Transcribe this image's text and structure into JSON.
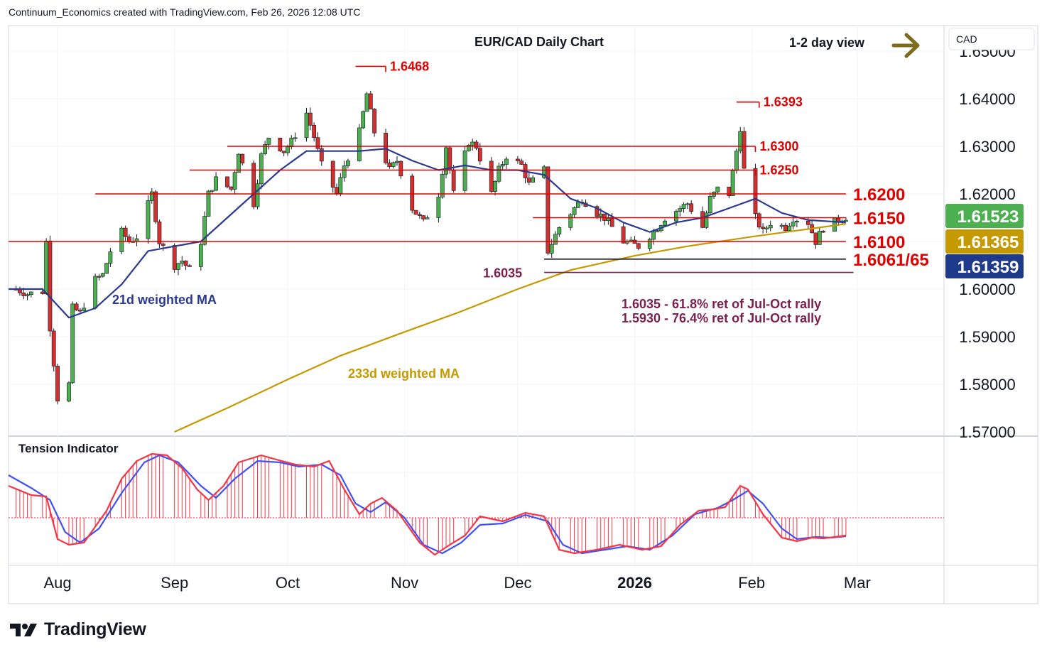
{
  "header": {
    "credit": "Continuum_Economics created with TradingView.com, Feb 26, 2026 12:08 UTC"
  },
  "main_pane": {
    "title": "EUR/CAD Daily Chart",
    "view_label": "1-2 day view",
    "currency_label": "CAD"
  },
  "colors": {
    "up": "#4caf50",
    "down": "#d32f2f",
    "level": "#e00000",
    "ma21": "#2b3a8f",
    "ma233": "#c49a00",
    "retrace": "#7b1f4f",
    "arrow": "#7f6b1e",
    "osc_red": "#f23645",
    "osc_blue": "#3f51f5"
  },
  "chart_data": {
    "type": "candlestick",
    "title": "EUR/CAD Daily Chart",
    "ylim": [
      1.57,
      1.65
    ],
    "y_ticks": [
      {
        "value": 1.57,
        "label": "1.57000"
      },
      {
        "value": 1.58,
        "label": "1.58000"
      },
      {
        "value": 1.59,
        "label": "1.59000"
      },
      {
        "value": 1.6,
        "label": "1.60000"
      },
      {
        "value": 1.61,
        "label": "1.61000"
      },
      {
        "value": 1.62,
        "label": "1.62000"
      },
      {
        "value": 1.63,
        "label": "1.63000"
      },
      {
        "value": 1.64,
        "label": "1.64000"
      },
      {
        "value": 1.65,
        "label": "1.65000"
      }
    ],
    "x_range": [
      "2025-07-19",
      "2026-03-24"
    ],
    "x_ticks": [
      {
        "date": "2025-08-01",
        "label": "Aug",
        "bold": false
      },
      {
        "date": "2025-09-01",
        "label": "Sep",
        "bold": false
      },
      {
        "date": "2025-10-01",
        "label": "Oct",
        "bold": false
      },
      {
        "date": "2025-11-01",
        "label": "Nov",
        "bold": false
      },
      {
        "date": "2025-12-01",
        "label": "Dec",
        "bold": false
      },
      {
        "date": "2026-01-01",
        "label": "2026",
        "bold": true
      },
      {
        "date": "2026-02-01",
        "label": "Feb",
        "bold": false
      },
      {
        "date": "2026-03-01",
        "label": "Mar",
        "bold": false
      }
    ],
    "close_path": [
      [
        "2025-07-21",
        1.6
      ],
      [
        "2025-07-24",
        1.599
      ],
      [
        "2025-07-28",
        1.5995
      ],
      [
        "2025-07-29",
        1.61
      ],
      [
        "2025-07-30",
        1.592
      ],
      [
        "2025-08-01",
        1.577
      ],
      [
        "2025-08-04",
        1.58
      ],
      [
        "2025-08-05",
        1.596
      ],
      [
        "2025-08-07",
        1.595
      ],
      [
        "2025-08-11",
        1.602
      ],
      [
        "2025-08-13",
        1.603
      ],
      [
        "2025-08-15",
        1.608
      ],
      [
        "2025-08-18",
        1.612
      ],
      [
        "2025-08-20",
        1.61
      ],
      [
        "2025-08-22",
        1.611
      ],
      [
        "2025-08-26",
        1.62
      ],
      [
        "2025-08-28",
        1.61
      ],
      [
        "2025-09-01",
        1.605
      ],
      [
        "2025-09-03",
        1.606
      ],
      [
        "2025-09-05",
        1.604
      ],
      [
        "2025-09-08",
        1.61
      ],
      [
        "2025-09-10",
        1.62
      ],
      [
        "2025-09-12",
        1.623
      ],
      [
        "2025-09-16",
        1.621
      ],
      [
        "2025-09-18",
        1.629
      ],
      [
        "2025-09-22",
        1.618
      ],
      [
        "2025-09-24",
        1.628
      ],
      [
        "2025-09-26",
        1.632
      ],
      [
        "2025-09-30",
        1.629
      ],
      [
        "2025-10-02",
        1.631
      ],
      [
        "2025-10-06",
        1.637
      ],
      [
        "2025-10-08",
        1.632
      ],
      [
        "2025-10-10",
        1.626
      ],
      [
        "2025-10-14",
        1.62
      ],
      [
        "2025-10-16",
        1.626
      ],
      [
        "2025-10-20",
        1.633
      ],
      [
        "2025-10-22",
        1.641
      ],
      [
        "2025-10-24",
        1.633
      ],
      [
        "2025-10-28",
        1.625
      ],
      [
        "2025-10-30",
        1.627
      ],
      [
        "2025-11-03",
        1.617
      ],
      [
        "2025-11-06",
        1.614
      ],
      [
        "2025-11-10",
        1.62
      ],
      [
        "2025-11-12",
        1.63
      ],
      [
        "2025-11-14",
        1.62
      ],
      [
        "2025-11-18",
        1.631
      ],
      [
        "2025-11-20",
        1.63
      ],
      [
        "2025-11-24",
        1.62
      ],
      [
        "2025-11-26",
        1.625
      ],
      [
        "2025-11-28",
        1.628
      ],
      [
        "2025-12-02",
        1.626
      ],
      [
        "2025-12-04",
        1.622
      ],
      [
        "2025-12-08",
        1.625
      ],
      [
        "2025-12-09",
        1.608
      ],
      [
        "2025-12-12",
        1.613
      ],
      [
        "2025-12-16",
        1.617
      ],
      [
        "2025-12-18",
        1.619
      ],
      [
        "2025-12-22",
        1.616
      ],
      [
        "2025-12-24",
        1.615
      ],
      [
        "2025-12-29",
        1.61
      ],
      [
        "2026-01-02",
        1.609
      ],
      [
        "2026-01-06",
        1.612
      ],
      [
        "2026-01-09",
        1.615
      ],
      [
        "2026-01-13",
        1.617
      ],
      [
        "2026-01-15",
        1.618
      ],
      [
        "2026-01-19",
        1.613
      ],
      [
        "2026-01-21",
        1.619
      ],
      [
        "2026-01-23",
        1.621
      ],
      [
        "2026-01-26",
        1.62
      ],
      [
        "2026-01-28",
        1.629
      ],
      [
        "2026-01-29",
        1.634
      ],
      [
        "2026-01-30",
        1.625
      ],
      [
        "2026-02-02",
        1.615
      ],
      [
        "2026-02-04",
        1.612
      ],
      [
        "2026-02-06",
        1.614
      ],
      [
        "2026-02-10",
        1.613
      ],
      [
        "2026-02-12",
        1.615
      ],
      [
        "2026-02-16",
        1.614
      ],
      [
        "2026-02-18",
        1.61
      ],
      [
        "2026-02-20",
        1.613
      ],
      [
        "2026-02-23",
        1.614
      ],
      [
        "2026-02-25",
        1.615
      ],
      [
        "2026-02-26",
        1.6152
      ]
    ],
    "series": [
      {
        "name": "21d weighted MA",
        "points": [
          [
            "2025-07-19",
            1.6
          ],
          [
            "2025-07-28",
            1.6
          ],
          [
            "2025-08-04",
            1.594
          ],
          [
            "2025-08-11",
            1.596
          ],
          [
            "2025-08-18",
            1.601
          ],
          [
            "2025-08-25",
            1.608
          ],
          [
            "2025-09-01",
            1.609
          ],
          [
            "2025-09-08",
            1.61
          ],
          [
            "2025-09-15",
            1.615
          ],
          [
            "2025-09-22",
            1.62
          ],
          [
            "2025-09-29",
            1.625
          ],
          [
            "2025-10-06",
            1.629
          ],
          [
            "2025-10-13",
            1.629
          ],
          [
            "2025-10-20",
            1.629
          ],
          [
            "2025-10-27",
            1.6295
          ],
          [
            "2025-11-03",
            1.627
          ],
          [
            "2025-11-10",
            1.625
          ],
          [
            "2025-11-17",
            1.626
          ],
          [
            "2025-11-24",
            1.625
          ],
          [
            "2025-12-01",
            1.625
          ],
          [
            "2025-12-08",
            1.624
          ],
          [
            "2025-12-15",
            1.619
          ],
          [
            "2025-12-22",
            1.617
          ],
          [
            "2025-12-29",
            1.614
          ],
          [
            "2026-01-05",
            1.612
          ],
          [
            "2026-01-12",
            1.614
          ],
          [
            "2026-01-19",
            1.615
          ],
          [
            "2026-01-26",
            1.617
          ],
          [
            "2026-02-02",
            1.619
          ],
          [
            "2026-02-09",
            1.616
          ],
          [
            "2026-02-16",
            1.6145
          ],
          [
            "2026-02-26",
            1.614
          ]
        ]
      },
      {
        "name": "233d weighted MA",
        "points": [
          [
            "2025-09-01",
            1.57
          ],
          [
            "2025-09-15",
            1.575
          ],
          [
            "2025-10-01",
            1.581
          ],
          [
            "2025-10-15",
            1.586
          ],
          [
            "2025-11-01",
            1.591
          ],
          [
            "2025-11-15",
            1.595
          ],
          [
            "2025-12-01",
            1.6
          ],
          [
            "2025-12-15",
            1.604
          ],
          [
            "2026-01-01",
            1.607
          ],
          [
            "2026-01-15",
            1.609
          ],
          [
            "2026-02-01",
            1.611
          ],
          [
            "2026-02-15",
            1.6125
          ],
          [
            "2026-02-26",
            1.6137
          ]
        ]
      }
    ],
    "levels": [
      {
        "value": 1.62,
        "label": "1.6200",
        "from": "2025-08-11",
        "to": "2026-02-26",
        "style": "big"
      },
      {
        "value": 1.615,
        "label": "1.6150",
        "from": "2025-12-05",
        "to": "2026-02-26",
        "style": "big"
      },
      {
        "value": 1.61,
        "label": "1.6100",
        "from": "2025-07-19",
        "to": "2026-02-26",
        "style": "big"
      },
      {
        "value": 1.6063,
        "label": "1.6061/65",
        "from": "2025-12-08",
        "to": "2026-02-26",
        "style": "big"
      },
      {
        "value": 1.63,
        "label": "1.6300",
        "from": "2025-09-15",
        "to": "2026-02-02",
        "style": "small"
      },
      {
        "value": 1.625,
        "label": "1.6250",
        "from": "2025-09-05",
        "to": "2026-02-02",
        "style": "small"
      },
      {
        "value": 1.6468,
        "label": "1.6468",
        "from": "2025-10-19",
        "to": "2025-10-27",
        "style": "small"
      },
      {
        "value": 1.6393,
        "label": "1.6393",
        "from": "2026-01-28",
        "to": "2026-02-03",
        "style": "small"
      }
    ],
    "retrace": {
      "value": 1.6035,
      "label": "1.6035",
      "from": "2025-12-08",
      "to": "2026-02-28"
    },
    "annotations": [
      "21d weighted MA",
      "233d weighted MA",
      "1.6035 - 61.8% ret of Jul-Oct rally",
      "1.5930 - 76.4% ret of Jul-Oct rally"
    ],
    "price_labels": [
      {
        "value": "1.61523",
        "bg": "#4caf50",
        "fg": "#ffffff"
      },
      {
        "value": "1.61365",
        "bg": "#c49a00",
        "fg": "#ffffff"
      },
      {
        "value": "1.61359",
        "bg": "#1e3a8a",
        "fg": "#ffffff"
      }
    ],
    "tension_indicator": {
      "title": "Tension Indicator",
      "range": [
        -1,
        1
      ],
      "fast": [
        [
          "2025-07-19",
          0.45
        ],
        [
          "2025-07-25",
          0.32
        ],
        [
          "2025-07-29",
          0.3
        ],
        [
          "2025-08-01",
          -0.3
        ],
        [
          "2025-08-04",
          -0.38
        ],
        [
          "2025-08-08",
          -0.35
        ],
        [
          "2025-08-14",
          0.1
        ],
        [
          "2025-08-18",
          0.55
        ],
        [
          "2025-08-22",
          0.8
        ],
        [
          "2025-08-26",
          0.9
        ],
        [
          "2025-08-30",
          0.88
        ],
        [
          "2025-09-03",
          0.7
        ],
        [
          "2025-09-07",
          0.4
        ],
        [
          "2025-09-10",
          0.25
        ],
        [
          "2025-09-14",
          0.45
        ],
        [
          "2025-09-18",
          0.78
        ],
        [
          "2025-09-24",
          0.88
        ],
        [
          "2025-09-28",
          0.82
        ],
        [
          "2025-10-03",
          0.75
        ],
        [
          "2025-10-08",
          0.72
        ],
        [
          "2025-10-12",
          0.8
        ],
        [
          "2025-10-16",
          0.4
        ],
        [
          "2025-10-20",
          0.05
        ],
        [
          "2025-10-23",
          0.2
        ],
        [
          "2025-10-26",
          0.28
        ],
        [
          "2025-10-30",
          0.1
        ],
        [
          "2025-11-05",
          -0.35
        ],
        [
          "2025-11-09",
          -0.52
        ],
        [
          "2025-11-13",
          -0.38
        ],
        [
          "2025-11-17",
          -0.25
        ],
        [
          "2025-11-21",
          0.02
        ],
        [
          "2025-11-27",
          -0.05
        ],
        [
          "2025-12-03",
          0.07
        ],
        [
          "2025-12-08",
          0.02
        ],
        [
          "2025-12-12",
          -0.45
        ],
        [
          "2025-12-16",
          -0.5
        ],
        [
          "2025-12-22",
          -0.45
        ],
        [
          "2025-12-28",
          -0.38
        ],
        [
          "2026-01-03",
          -0.45
        ],
        [
          "2026-01-08",
          -0.4
        ],
        [
          "2026-01-13",
          -0.1
        ],
        [
          "2026-01-18",
          0.1
        ],
        [
          "2026-01-22",
          0.12
        ],
        [
          "2026-01-25",
          0.15
        ],
        [
          "2026-01-29",
          0.45
        ],
        [
          "2026-01-31",
          0.4
        ],
        [
          "2026-02-04",
          0.05
        ],
        [
          "2026-02-09",
          -0.28
        ],
        [
          "2026-02-13",
          -0.33
        ],
        [
          "2026-02-17",
          -0.28
        ],
        [
          "2026-02-20",
          -0.29
        ],
        [
          "2026-02-26",
          -0.25
        ]
      ],
      "slow": [
        [
          "2025-07-19",
          0.6
        ],
        [
          "2025-07-25",
          0.42
        ],
        [
          "2025-07-30",
          0.25
        ],
        [
          "2025-08-03",
          -0.2
        ],
        [
          "2025-08-07",
          -0.35
        ],
        [
          "2025-08-12",
          -0.15
        ],
        [
          "2025-08-18",
          0.35
        ],
        [
          "2025-08-24",
          0.78
        ],
        [
          "2025-08-28",
          0.88
        ],
        [
          "2025-09-02",
          0.78
        ],
        [
          "2025-09-08",
          0.45
        ],
        [
          "2025-09-12",
          0.28
        ],
        [
          "2025-09-17",
          0.55
        ],
        [
          "2025-09-23",
          0.8
        ],
        [
          "2025-09-29",
          0.78
        ],
        [
          "2025-10-04",
          0.72
        ],
        [
          "2025-10-10",
          0.75
        ],
        [
          "2025-10-15",
          0.6
        ],
        [
          "2025-10-19",
          0.2
        ],
        [
          "2025-10-23",
          0.08
        ],
        [
          "2025-10-27",
          0.22
        ],
        [
          "2025-11-01",
          0.0
        ],
        [
          "2025-11-06",
          -0.38
        ],
        [
          "2025-11-11",
          -0.5
        ],
        [
          "2025-11-16",
          -0.35
        ],
        [
          "2025-11-21",
          -0.1
        ],
        [
          "2025-11-27",
          -0.08
        ],
        [
          "2025-12-03",
          0.04
        ],
        [
          "2025-12-09",
          -0.05
        ],
        [
          "2025-12-13",
          -0.38
        ],
        [
          "2025-12-18",
          -0.5
        ],
        [
          "2025-12-24",
          -0.45
        ],
        [
          "2025-12-30",
          -0.4
        ],
        [
          "2026-01-05",
          -0.45
        ],
        [
          "2026-01-11",
          -0.25
        ],
        [
          "2026-01-17",
          0.05
        ],
        [
          "2026-01-23",
          0.14
        ],
        [
          "2026-01-27",
          0.25
        ],
        [
          "2026-01-31",
          0.38
        ],
        [
          "2026-02-04",
          0.2
        ],
        [
          "2026-02-09",
          -0.15
        ],
        [
          "2026-02-13",
          -0.3
        ],
        [
          "2026-02-18",
          -0.27
        ],
        [
          "2026-02-22",
          -0.28
        ],
        [
          "2026-02-26",
          -0.26
        ]
      ]
    }
  }
}
